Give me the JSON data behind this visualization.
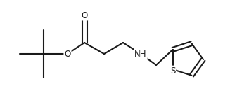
{
  "bg_color": "#ffffff",
  "line_color": "#1a1a1a",
  "text_color": "#1a1a1a",
  "line_width": 1.5,
  "font_size": 8.5,
  "figsize": [
    3.27,
    1.53
  ],
  "dpi": 100,
  "xlim": [
    0,
    327
  ],
  "ylim": [
    0,
    153
  ]
}
